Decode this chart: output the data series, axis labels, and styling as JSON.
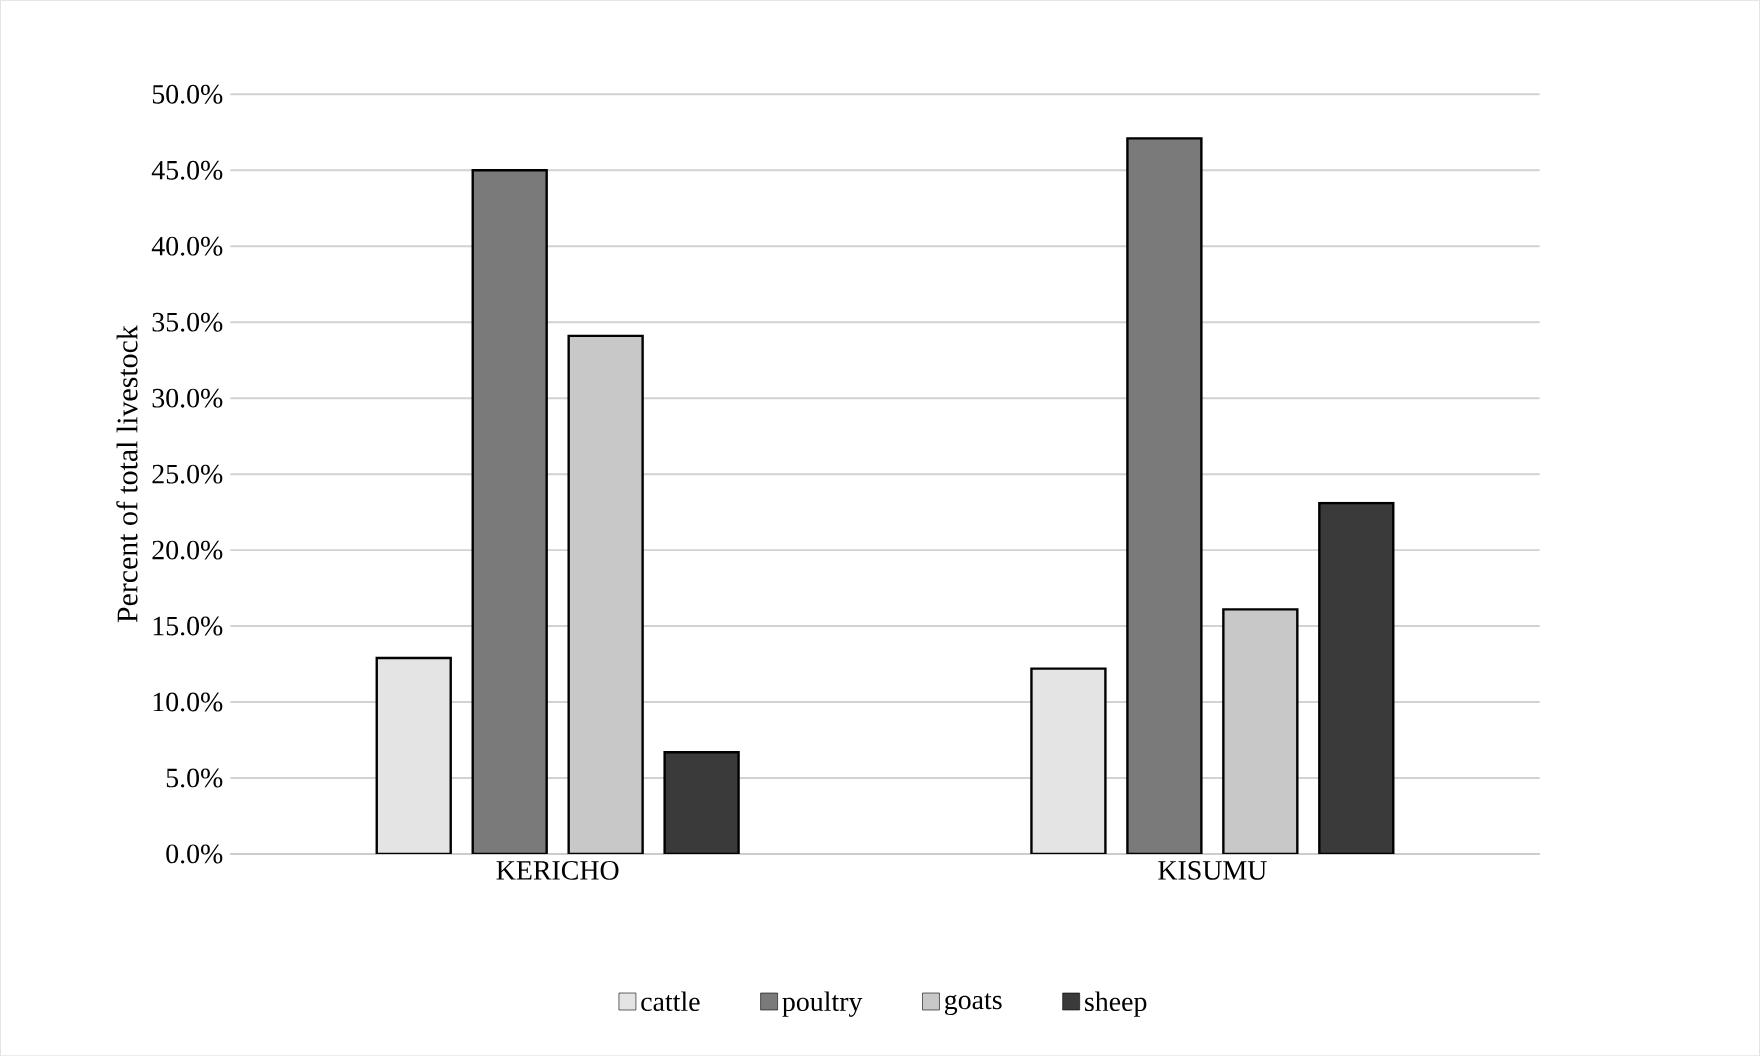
{
  "chart_data": {
    "type": "bar",
    "ylabel": "Percent of total livestock",
    "categories": [
      "KERICHO",
      "KISUMU"
    ],
    "series": [
      {
        "name": "cattle",
        "color": "#e4e4e4",
        "values": [
          12.9,
          12.2
        ]
      },
      {
        "name": "poultry",
        "color": "#7a7a7a",
        "values": [
          45.0,
          47.1
        ]
      },
      {
        "name": "goats",
        "color": "#c8c8c8",
        "values": [
          34.1,
          16.1
        ]
      },
      {
        "name": "sheep",
        "color": "#3a3a3a",
        "values": [
          6.7,
          23.1
        ]
      }
    ],
    "ylim": [
      0,
      50
    ],
    "yticks": [
      {
        "value": 0,
        "label": "0.0%"
      },
      {
        "value": 5,
        "label": "5.0%"
      },
      {
        "value": 10,
        "label": "10.0%"
      },
      {
        "value": 15,
        "label": "15.0%"
      },
      {
        "value": 20,
        "label": "20.0%"
      },
      {
        "value": 25,
        "label": "25.0%"
      },
      {
        "value": 30,
        "label": "30.0%"
      },
      {
        "value": 35,
        "label": "35.0%"
      },
      {
        "value": 40,
        "label": "40.0%"
      },
      {
        "value": 45,
        "label": "45.0%"
      },
      {
        "value": 50,
        "label": "50.0%"
      }
    ],
    "grid": "y",
    "legend": "bottom"
  }
}
